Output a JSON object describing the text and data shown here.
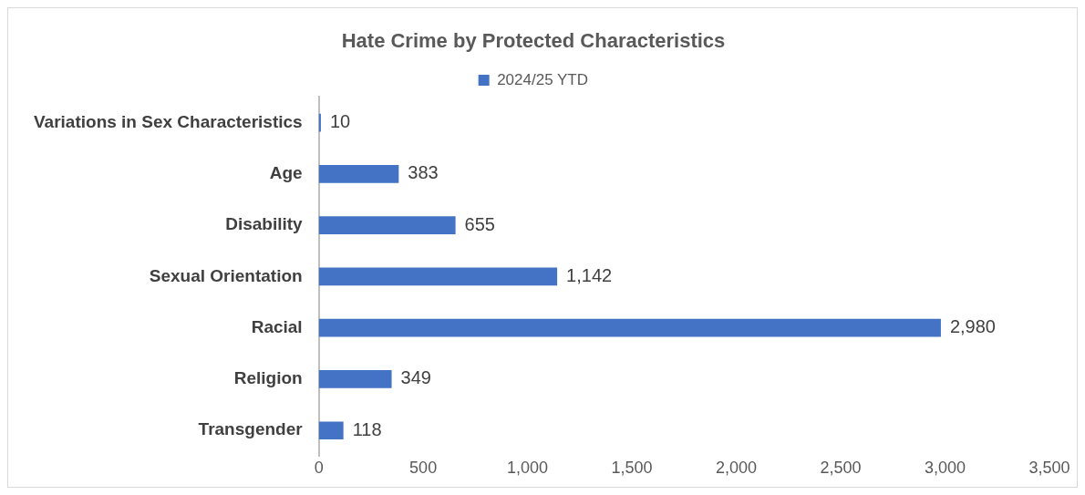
{
  "chart_data": {
    "type": "bar",
    "orientation": "horizontal",
    "title": "Hate Crime by Protected Characteristics",
    "categories": [
      "Variations in Sex Characteristics",
      "Age",
      "Disability",
      "Sexual Orientation",
      "Racial",
      "Religion",
      "Transgender"
    ],
    "series": [
      {
        "name": "2024/25 YTD",
        "color": "#4472c4",
        "values": [
          10,
          383,
          655,
          1142,
          2980,
          349,
          118
        ],
        "value_labels": [
          "10",
          "383",
          "655",
          "1,142",
          "2,980",
          "349",
          "118"
        ]
      }
    ],
    "xlim": [
      0,
      3500
    ],
    "xticks": [
      0,
      500,
      {
        "value": 1000,
        "label": "1,000"
      },
      {
        "value": 1500,
        "label": "1,500"
      },
      {
        "value": 2000,
        "label": "2,000"
      },
      {
        "value": 2500,
        "label": "2,500"
      },
      {
        "value": 3000,
        "label": "3,000"
      },
      {
        "value": 3500,
        "label": "3,500"
      }
    ],
    "grid": false,
    "legend": "top"
  }
}
